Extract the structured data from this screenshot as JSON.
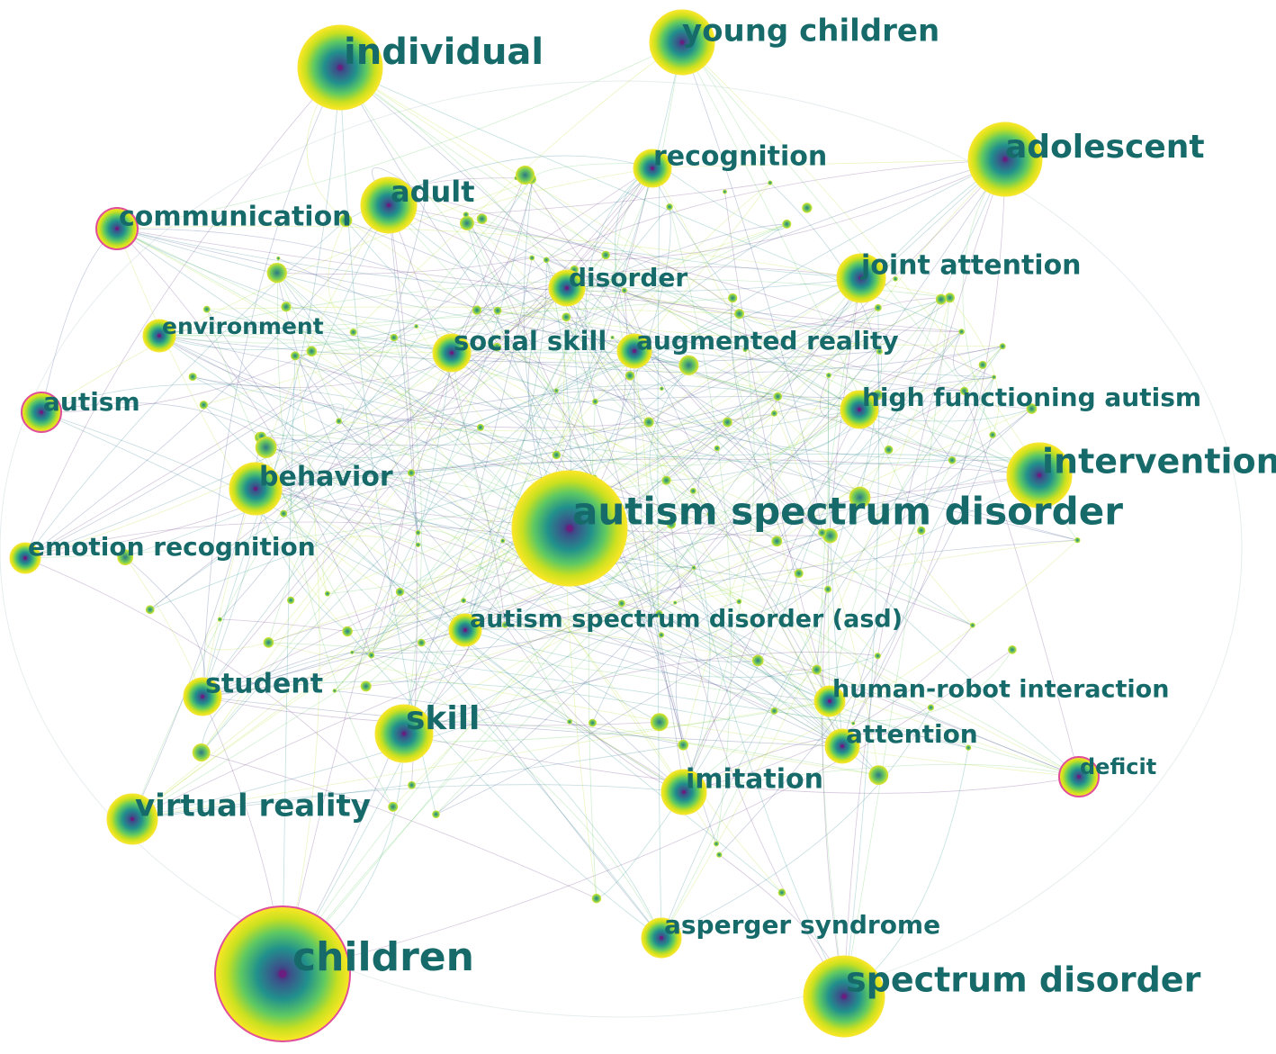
{
  "nodes": [
    {
      "label": "individual"
    },
    {
      "label": "young children"
    },
    {
      "label": "adolescent"
    },
    {
      "label": "recognition"
    },
    {
      "label": "adult"
    },
    {
      "label": "communication"
    },
    {
      "label": "joint attention"
    },
    {
      "label": "disorder"
    },
    {
      "label": "environment"
    },
    {
      "label": "social skill"
    },
    {
      "label": "augmented reality"
    },
    {
      "label": "autism"
    },
    {
      "label": "high functioning autism"
    },
    {
      "label": "intervention"
    },
    {
      "label": "behavior"
    },
    {
      "label": "autism spectrum disorder"
    },
    {
      "label": "emotion recognition"
    },
    {
      "label": "autism spectrum disorder (asd)"
    },
    {
      "label": "student"
    },
    {
      "label": "skill"
    },
    {
      "label": "human-robot interaction"
    },
    {
      "label": "attention"
    },
    {
      "label": "deficit"
    },
    {
      "label": "imitation"
    },
    {
      "label": "virtual reality"
    },
    {
      "label": "asperger syndrome"
    },
    {
      "label": "children"
    },
    {
      "label": "spectrum disorder"
    }
  ]
}
